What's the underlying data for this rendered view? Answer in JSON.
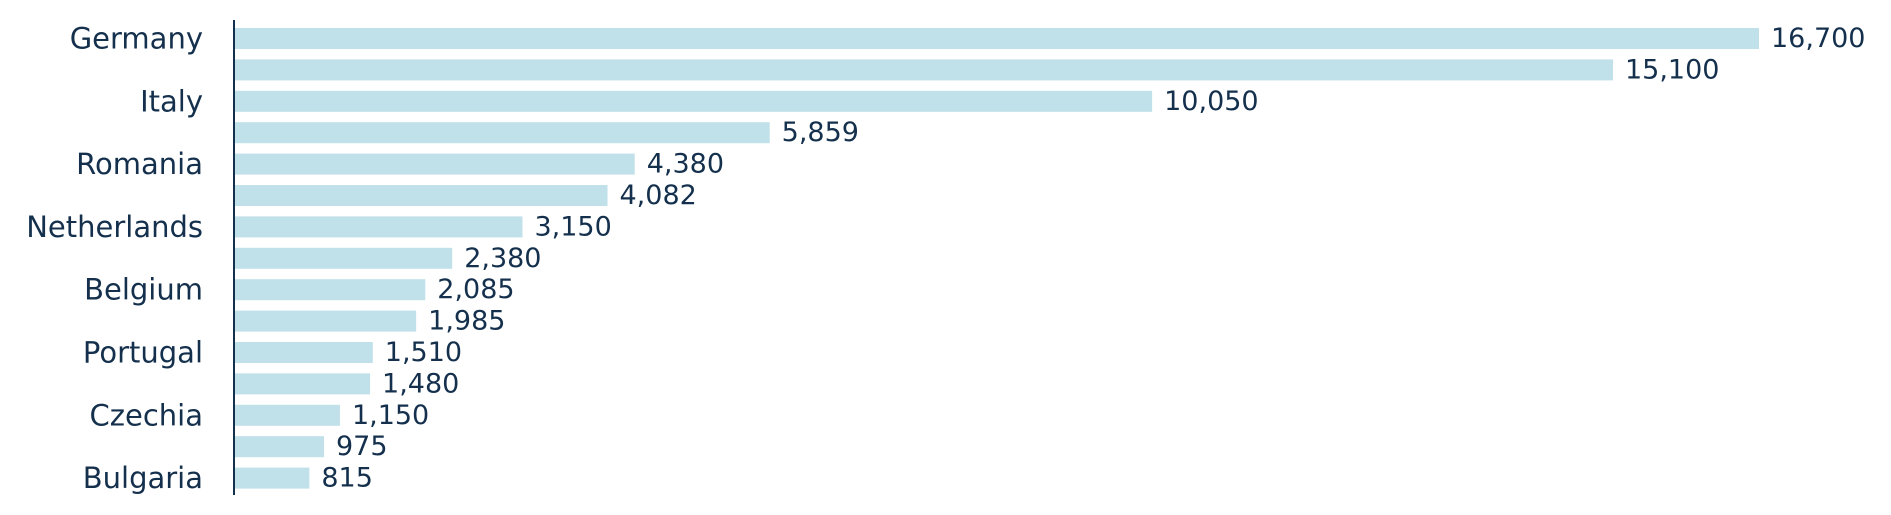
{
  "chart_data": {
    "type": "bar",
    "orientation": "horizontal",
    "categories": [
      "Germany",
      "",
      "Italy",
      "",
      "Romania",
      "",
      "Netherlands",
      "",
      "Belgium",
      "",
      "Portugal",
      "",
      "Czechia",
      "",
      "Bulgaria"
    ],
    "values": [
      16700,
      15100,
      10050,
      5859,
      4380,
      4082,
      3150,
      2380,
      2085,
      1985,
      1510,
      1480,
      1150,
      975,
      815
    ],
    "value_labels": [
      "16,700",
      "15,100",
      "10,050",
      "5,859",
      "4,380",
      "4,082",
      "3,150",
      "2,380",
      "2,085",
      "1,985",
      "1,510",
      "1,480",
      "1,150",
      "975",
      "815"
    ],
    "title": "",
    "xlabel": "",
    "ylabel": "",
    "xlim": [
      0,
      16700
    ],
    "grid": false,
    "legend": "none",
    "bar_color": "#c0e0ea",
    "text_color": "#14304d",
    "axis_color": "#14304d"
  }
}
